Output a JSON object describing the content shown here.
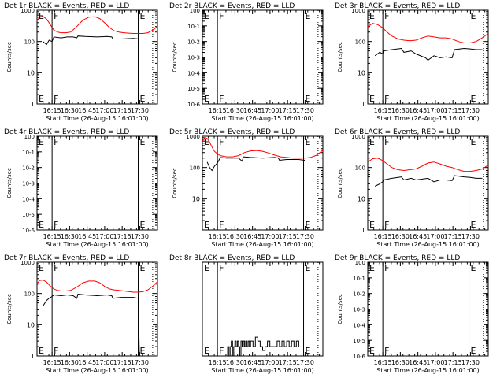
{
  "chart_data": [
    {
      "type": "line",
      "title": "Det 1r BLACK = Events, RED = LLD",
      "xlabel": "Start Time (26-Aug-15 16:01:00)",
      "ylabel": "Counts/sec",
      "yscale": "log",
      "ylim": [
        1,
        1000
      ],
      "y_ticks": [
        "1",
        "10",
        "100",
        "1000"
      ],
      "x_ticks": [
        "16:15",
        "16:30",
        "16:45",
        "17:00",
        "17:15",
        "17:30"
      ],
      "markers": [
        {
          "label": "E",
          "x": 0.0
        },
        {
          "label": "F",
          "x": 0.125
        },
        {
          "label": "E",
          "x": 0.84
        }
      ],
      "solid_lines": [
        0.125,
        0.84
      ],
      "dotted_lines": [
        0.96
      ],
      "series": [
        {
          "color": "#ff0000",
          "x": [
            0,
            0.02,
            0.05,
            0.08,
            0.1,
            0.12,
            0.14,
            0.17,
            0.2,
            0.24,
            0.28,
            0.33,
            0.38,
            0.43,
            0.48,
            0.52,
            0.56,
            0.6,
            0.64,
            0.68,
            0.72,
            0.76,
            0.8,
            0.84,
            0.88,
            0.92,
            0.96,
            1.0
          ],
          "y": [
            450,
            600,
            640,
            520,
            400,
            300,
            230,
            200,
            190,
            190,
            200,
            300,
            480,
            600,
            620,
            540,
            400,
            280,
            220,
            200,
            190,
            185,
            180,
            180,
            180,
            190,
            230,
            300
          ]
        },
        {
          "color": "#000000",
          "x": [
            0.05,
            0.08,
            0.1,
            0.125,
            0.14,
            0.2,
            0.25,
            0.3,
            0.33,
            0.34,
            0.4,
            0.5,
            0.58,
            0.62,
            0.63,
            0.7,
            0.8,
            0.85
          ],
          "y": [
            100,
            80,
            110,
            100,
            140,
            130,
            140,
            140,
            130,
            150,
            145,
            140,
            145,
            140,
            120,
            120,
            125,
            120
          ]
        }
      ]
    },
    {
      "type": "line",
      "title": "Det 2r BLACK = Events, RED = LLD",
      "xlabel": "Start Time (26-Aug-15 16:01:00)",
      "ylabel": "Counts/sec",
      "yscale": "log",
      "ylim": [
        1e-06,
        1
      ],
      "y_ticks": [
        "10-6",
        "10-5",
        "10-4",
        "10-3",
        "10-2",
        "10-1",
        "100"
      ],
      "x_ticks": [
        "16:15",
        "16:30",
        "16:45",
        "17:00",
        "17:15",
        "17:30"
      ],
      "markers": [
        {
          "label": "E",
          "x": 0.0
        },
        {
          "label": "F",
          "x": 0.125
        },
        {
          "label": "E",
          "x": 0.84
        }
      ],
      "solid_lines": [
        0.125,
        0.84
      ],
      "dotted_lines": [
        0.96
      ],
      "series": []
    },
    {
      "type": "line",
      "title": "Det 3r BLACK = Events, RED = LLD",
      "xlabel": "Start Time (26-Aug-15 16:01:00)",
      "ylabel": "Counts/sec",
      "yscale": "log",
      "ylim": [
        1,
        1000
      ],
      "y_ticks": [
        "1",
        "10",
        "100",
        "1000"
      ],
      "x_ticks": [
        "16:15",
        "16:30",
        "16:45",
        "17:00",
        "17:15",
        "17:30"
      ],
      "markers": [
        {
          "label": "E",
          "x": 0.0
        },
        {
          "label": "F",
          "x": 0.125
        },
        {
          "label": "E",
          "x": 0.84
        }
      ],
      "solid_lines": [
        0.125,
        0.84
      ],
      "dotted_lines": [
        0.96
      ],
      "series": [
        {
          "color": "#ff0000",
          "x": [
            0,
            0.04,
            0.08,
            0.12,
            0.16,
            0.2,
            0.25,
            0.3,
            0.35,
            0.4,
            0.45,
            0.5,
            0.55,
            0.6,
            0.65,
            0.7,
            0.75,
            0.8,
            0.85,
            0.9,
            0.95,
            1.0
          ],
          "y": [
            300,
            380,
            350,
            280,
            200,
            150,
            120,
            110,
            105,
            110,
            130,
            150,
            140,
            130,
            130,
            120,
            100,
            90,
            90,
            100,
            130,
            180
          ]
        },
        {
          "color": "#000000",
          "x": [
            0.06,
            0.1,
            0.125,
            0.13,
            0.2,
            0.28,
            0.3,
            0.36,
            0.4,
            0.48,
            0.5,
            0.55,
            0.6,
            0.65,
            0.7,
            0.72,
            0.8,
            0.85,
            0.9,
            0.95
          ],
          "y": [
            35,
            45,
            40,
            50,
            55,
            60,
            45,
            50,
            40,
            30,
            25,
            35,
            30,
            32,
            30,
            55,
            60,
            58,
            55,
            55
          ]
        }
      ]
    },
    {
      "type": "line",
      "title": "Det 4r BLACK = Events, RED = LLD",
      "xlabel": "Start Time (26-Aug-15 16:01:00)",
      "ylabel": "Counts/sec",
      "yscale": "log",
      "ylim": [
        1e-06,
        1
      ],
      "y_ticks": [
        "10-6",
        "10-5",
        "10-4",
        "10-3",
        "10-2",
        "10-1",
        "100"
      ],
      "x_ticks": [
        "16:15",
        "16:30",
        "16:45",
        "17:00",
        "17:15",
        "17:30"
      ],
      "markers": [
        {
          "label": "E",
          "x": 0.0
        },
        {
          "label": "F",
          "x": 0.125
        },
        {
          "label": "E",
          "x": 0.84
        }
      ],
      "solid_lines": [
        0.125,
        0.84
      ],
      "dotted_lines": [
        0.96
      ],
      "series": []
    },
    {
      "type": "line",
      "title": "Det 5r BLACK = Events, RED = LLD",
      "xlabel": "Start Time (26-Aug-15 16:01:00)",
      "ylabel": "Counts/sec",
      "yscale": "log",
      "ylim": [
        1,
        1000
      ],
      "y_ticks": [
        "1",
        "10",
        "100",
        "1000"
      ],
      "x_ticks": [
        "16:15",
        "16:30",
        "16:45",
        "17:00",
        "17:15",
        "17:30"
      ],
      "markers": [
        {
          "label": "E",
          "x": 0.0
        },
        {
          "label": "F",
          "x": 0.125
        },
        {
          "label": "E",
          "x": 0.84
        }
      ],
      "solid_lines": [
        0.125,
        0.84
      ],
      "dotted_lines": [
        0.96
      ],
      "series": [
        {
          "color": "#ff0000",
          "x": [
            0,
            0.02,
            0.04,
            0.06,
            0.08,
            0.1,
            0.12,
            0.15,
            0.2,
            0.25,
            0.3,
            0.35,
            0.4,
            0.45,
            0.5,
            0.55,
            0.6,
            0.65,
            0.7,
            0.75,
            0.8,
            0.85,
            0.9,
            0.95,
            1.0
          ],
          "y": [
            700,
            900,
            850,
            650,
            450,
            330,
            280,
            240,
            220,
            220,
            240,
            300,
            340,
            350,
            330,
            290,
            250,
            220,
            210,
            200,
            200,
            200,
            210,
            250,
            360
          ]
        },
        {
          "color": "#000000",
          "x": [
            0.04,
            0.06,
            0.08,
            0.1,
            0.125,
            0.15,
            0.2,
            0.3,
            0.33,
            0.34,
            0.4,
            0.5,
            0.6,
            0.63,
            0.64,
            0.7,
            0.8,
            0.85
          ],
          "y": [
            150,
            100,
            80,
            110,
            140,
            210,
            200,
            200,
            160,
            220,
            210,
            200,
            210,
            200,
            170,
            180,
            180,
            170
          ]
        }
      ]
    },
    {
      "type": "line",
      "title": "Det 6r BLACK = Events, RED = LLD",
      "xlabel": "Start Time (26-Aug-15 16:01:00)",
      "ylabel": "Counts/sec",
      "yscale": "log",
      "ylim": [
        1,
        1000
      ],
      "y_ticks": [
        "1",
        "10",
        "100",
        "1000"
      ],
      "x_ticks": [
        "16:15",
        "16:30",
        "16:45",
        "17:00",
        "17:15",
        "17:30"
      ],
      "markers": [
        {
          "label": "E",
          "x": 0.0
        },
        {
          "label": "F",
          "x": 0.125
        },
        {
          "label": "E",
          "x": 0.84
        }
      ],
      "solid_lines": [
        0.125,
        0.84
      ],
      "dotted_lines": [
        0.96
      ],
      "series": [
        {
          "color": "#ff0000",
          "x": [
            0,
            0.04,
            0.08,
            0.12,
            0.16,
            0.2,
            0.25,
            0.3,
            0.35,
            0.4,
            0.45,
            0.5,
            0.55,
            0.6,
            0.65,
            0.7,
            0.75,
            0.8,
            0.85,
            0.9,
            0.95,
            1.0
          ],
          "y": [
            150,
            190,
            200,
            170,
            130,
            100,
            85,
            80,
            85,
            90,
            110,
            140,
            150,
            130,
            110,
            100,
            85,
            75,
            75,
            80,
            90,
            120
          ]
        },
        {
          "color": "#000000",
          "x": [
            0.06,
            0.1,
            0.125,
            0.13,
            0.2,
            0.28,
            0.3,
            0.36,
            0.4,
            0.5,
            0.55,
            0.6,
            0.65,
            0.7,
            0.72,
            0.8,
            0.85,
            0.9,
            0.95
          ],
          "y": [
            25,
            30,
            35,
            40,
            45,
            50,
            40,
            45,
            40,
            45,
            35,
            40,
            40,
            38,
            55,
            50,
            48,
            45,
            45
          ]
        }
      ]
    },
    {
      "type": "line",
      "title": "Det 7r BLACK = Events, RED = LLD",
      "xlabel": "Start Time (26-Aug-15 16:01:00)",
      "ylabel": "Counts/sec",
      "yscale": "log",
      "ylim": [
        1,
        1000
      ],
      "y_ticks": [
        "1",
        "10",
        "100",
        "1000"
      ],
      "x_ticks": [
        "16:15",
        "16:30",
        "16:45",
        "17:00",
        "17:15",
        "17:30"
      ],
      "markers": [
        {
          "label": "E",
          "x": 0.0
        },
        {
          "label": "F",
          "x": 0.125
        },
        {
          "label": "E",
          "x": 0.84
        }
      ],
      "solid_lines": [
        0.125,
        0.84
      ],
      "dotted_lines": [
        0.96
      ],
      "series": [
        {
          "color": "#ff0000",
          "x": [
            0,
            0.02,
            0.05,
            0.08,
            0.1,
            0.12,
            0.14,
            0.17,
            0.2,
            0.24,
            0.28,
            0.33,
            0.38,
            0.43,
            0.48,
            0.52,
            0.56,
            0.6,
            0.64,
            0.68,
            0.72,
            0.76,
            0.8,
            0.84,
            0.88,
            0.92,
            0.96,
            1.0
          ],
          "y": [
            200,
            260,
            270,
            230,
            190,
            160,
            140,
            125,
            120,
            120,
            125,
            160,
            220,
            250,
            250,
            220,
            170,
            140,
            130,
            125,
            120,
            115,
            110,
            110,
            115,
            130,
            170,
            240
          ]
        },
        {
          "color": "#000000",
          "x": [
            0.05,
            0.08,
            0.1,
            0.125,
            0.14,
            0.2,
            0.25,
            0.3,
            0.33,
            0.34,
            0.4,
            0.5,
            0.58,
            0.62,
            0.63,
            0.7,
            0.8,
            0.84,
            0.85
          ],
          "y": [
            40,
            60,
            70,
            80,
            90,
            85,
            90,
            85,
            70,
            95,
            90,
            85,
            90,
            85,
            70,
            75,
            75,
            70,
            1
          ]
        }
      ]
    },
    {
      "type": "line",
      "title": "Det 8r BLACK = Events, RED = LLD",
      "xlabel": "Start Time (26-Aug-15 16:01:00)",
      "ylabel": "",
      "yscale": "log",
      "ylim": [
        1,
        1000
      ],
      "y_ticks": [],
      "x_ticks": [
        "16:15",
        "16:30",
        "16:45",
        "17:00",
        "17:15",
        "17:30"
      ],
      "markers": [
        {
          "label": "E",
          "x": 0.0
        },
        {
          "label": "F",
          "x": 0.125
        },
        {
          "label": "E",
          "x": 0.84
        }
      ],
      "solid_lines": [
        0.125,
        0.84
      ],
      "dotted_lines": [
        0.96
      ],
      "series": [
        {
          "color": "#000000",
          "step": true,
          "x": [
            0.2,
            0.21,
            0.22,
            0.23,
            0.24,
            0.25,
            0.26,
            0.27,
            0.28,
            0.29,
            0.3,
            0.31,
            0.32,
            0.33,
            0.34,
            0.35,
            0.36,
            0.37,
            0.38,
            0.39,
            0.4,
            0.42,
            0.44,
            0.46,
            0.48,
            0.5,
            0.52,
            0.54,
            0.56,
            0.6,
            0.62,
            0.64,
            0.66,
            0.68,
            0.7,
            0.72,
            0.74,
            0.76,
            0.78,
            0.8
          ],
          "y": [
            1,
            2,
            1,
            2,
            3,
            1,
            2,
            3,
            2,
            3,
            2,
            1,
            3,
            2,
            3,
            2,
            3,
            2,
            3,
            2,
            3,
            2,
            4,
            3,
            2,
            1.5,
            2,
            3,
            2,
            2,
            3,
            2,
            3,
            2,
            3,
            2,
            3,
            2,
            3,
            2
          ]
        }
      ]
    },
    {
      "type": "line",
      "title": "Det 9r BLACK = Events, RED = LLD",
      "xlabel": "Start Time (26-Aug-15 16:01:00)",
      "ylabel": "Counts/sec",
      "yscale": "log",
      "ylim": [
        1e-06,
        1
      ],
      "y_ticks": [
        "10-6",
        "10-5",
        "10-4",
        "10-3",
        "10-2",
        "10-1",
        "100"
      ],
      "x_ticks": [
        "16:15",
        "16:30",
        "16:45",
        "17:00",
        "17:15",
        "17:30"
      ],
      "markers": [
        {
          "label": "E",
          "x": 0.0
        },
        {
          "label": "F",
          "x": 0.125
        },
        {
          "label": "E",
          "x": 0.84
        }
      ],
      "solid_lines": [
        0.125,
        0.84
      ],
      "dotted_lines": [
        0.96
      ],
      "series": []
    }
  ]
}
